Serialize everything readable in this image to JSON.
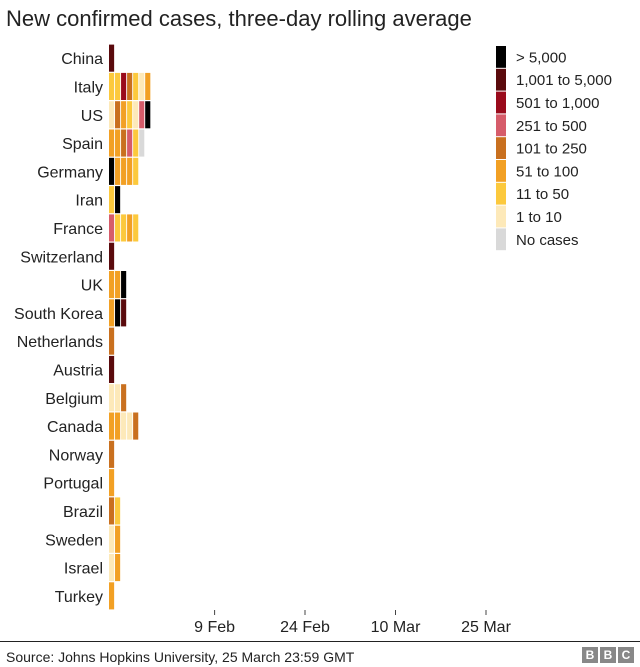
{
  "chart_data": {
    "type": "heatmap",
    "title": "New confirmed cases, three-day rolling average",
    "source": "Source: Johns Hopkins University, 25 March 23:59 GMT",
    "logo": [
      "B",
      "B",
      "C"
    ],
    "start_date": "2020-01-23",
    "end_date": "2020-03-25",
    "x_ticks": [
      {
        "label": "9 Feb",
        "date": "2020-02-09"
      },
      {
        "label": "24 Feb",
        "date": "2020-02-24"
      },
      {
        "label": "10 Mar",
        "date": "2020-03-10"
      },
      {
        "label": "25 Mar",
        "date": "2020-03-25"
      }
    ],
    "categories": [
      {
        "label": "No cases",
        "color": "#d9d9d9"
      },
      {
        "label": "1 to 10",
        "color": "#fde9b9"
      },
      {
        "label": "11 to 50",
        "color": "#fcc93d"
      },
      {
        "label": "51 to 100",
        "color": "#f2a024"
      },
      {
        "label": "101 to 250",
        "color": "#c9701f"
      },
      {
        "label": "251 to 500",
        "color": "#d65c6a"
      },
      {
        "label": "501 to 1,000",
        "color": "#9a0b1c"
      },
      {
        "label": "1,001 to 5,000",
        "color": "#5a0a0d"
      },
      {
        "label": "> 5,000",
        "color": "#000000"
      }
    ],
    "legend_order": [
      8,
      7,
      6,
      5,
      4,
      3,
      2,
      1,
      0
    ],
    "rows": [
      {
        "country": "China",
        "runs": [
          [
            7,
            1
          ],
          [
            46,
            0
          ]
        ]
      },
      {
        "country": "Italy",
        "runs": [
          [
            8,
            0
          ],
          [
            2,
            1
          ],
          [
            5,
            0
          ],
          [
            2,
            1
          ],
          [
            2,
            0
          ],
          [
            6,
            1
          ],
          [
            7,
            0
          ],
          [
            4,
            1
          ],
          [
            6,
            0
          ],
          [
            2,
            1
          ],
          [
            4,
            0
          ],
          [
            1,
            1
          ],
          [
            1,
            0
          ],
          [
            3,
            1
          ],
          [
            8,
            0
          ]
        ]
      },
      {
        "country": "US",
        "runs": [
          [
            1,
            1
          ],
          [
            4,
            0
          ],
          [
            4,
            1
          ],
          [
            9,
            0
          ],
          [
            3,
            1
          ],
          [
            3,
            0
          ],
          [
            2,
            1
          ],
          [
            2,
            0
          ],
          [
            1,
            1
          ],
          [
            4,
            0
          ],
          [
            5,
            1
          ],
          [
            3,
            0
          ],
          [
            12,
            1
          ]
        ]
      },
      {
        "country": "Spain",
        "runs": [
          [
            2,
            0
          ],
          [
            3,
            1
          ],
          [
            5,
            0
          ],
          [
            3,
            1
          ],
          [
            7,
            0
          ],
          [
            4,
            1
          ],
          [
            14,
            0
          ],
          [
            5,
            1
          ],
          [
            3,
            0
          ],
          [
            2,
            1
          ],
          [
            5,
            0
          ],
          [
            0,
            1
          ]
        ]
      },
      {
        "country": "Germany",
        "runs": [
          [
            1,
            0
          ],
          [
            8,
            1
          ],
          [
            4,
            0
          ],
          [
            3,
            1
          ],
          [
            2,
            0
          ],
          [
            3,
            1
          ],
          [
            3,
            0
          ],
          [
            3,
            1
          ],
          [
            3,
            0
          ],
          [
            2,
            1
          ],
          [
            21,
            0
          ]
        ]
      },
      {
        "country": "Iran",
        "runs": [
          [
            24,
            0
          ],
          [
            2,
            1
          ],
          [
            4,
            0
          ],
          [
            23,
            1
          ]
        ]
      },
      {
        "country": "France",
        "runs": [
          [
            2,
            0
          ],
          [
            5,
            1
          ],
          [
            5,
            0
          ],
          [
            2,
            1
          ],
          [
            1,
            0
          ],
          [
            2,
            1
          ],
          [
            3,
            0
          ],
          [
            3,
            1
          ],
          [
            9,
            0
          ],
          [
            2,
            1
          ],
          [
            19,
            0
          ]
        ]
      },
      {
        "country": "Switzerland",
        "runs": [
          [
            30,
            0
          ],
          [
            7,
            1
          ],
          [
            16,
            0
          ]
        ]
      },
      {
        "country": "UK",
        "runs": [
          [
            7,
            0
          ],
          [
            3,
            1
          ],
          [
            13,
            0
          ],
          [
            3,
            1
          ],
          [
            4,
            0
          ],
          [
            9,
            1
          ],
          [
            14,
            0
          ]
        ]
      },
      {
        "country": "South Korea",
        "runs": [
          [
            3,
            1
          ],
          [
            1,
            0
          ],
          [
            11,
            1
          ],
          [
            1,
            0
          ],
          [
            7,
            1
          ],
          [
            30,
            0
          ]
        ]
      },
      {
        "country": "Netherlands",
        "runs": [
          [
            36,
            0
          ],
          [
            4,
            1
          ],
          [
            13,
            0
          ]
        ]
      },
      {
        "country": "Austria",
        "runs": [
          [
            33,
            0
          ],
          [
            7,
            1
          ],
          [
            13,
            0
          ]
        ]
      },
      {
        "country": "Belgium",
        "runs": [
          [
            5,
            0
          ],
          [
            1,
            1
          ],
          [
            4,
            0
          ],
          [
            1,
            1
          ],
          [
            26,
            0
          ],
          [
            4,
            1
          ],
          [
            12,
            0
          ]
        ]
      },
      {
        "country": "Canada",
        "runs": [
          [
            3,
            1
          ],
          [
            3,
            0
          ],
          [
            3,
            1
          ],
          [
            4,
            0
          ],
          [
            1,
            1
          ],
          [
            2,
            0
          ],
          [
            1,
            1
          ],
          [
            13,
            0
          ],
          [
            4,
            1
          ],
          [
            19,
            0
          ]
        ]
      },
      {
        "country": "Norway",
        "runs": [
          [
            35,
            0
          ],
          [
            4,
            1
          ],
          [
            14,
            0
          ]
        ]
      },
      {
        "country": "Portugal",
        "runs": [
          [
            40,
            0
          ],
          [
            3,
            1
          ],
          [
            10,
            0
          ]
        ]
      },
      {
        "country": "Brazil",
        "runs": [
          [
            36,
            0
          ],
          [
            4,
            1
          ],
          [
            1,
            0
          ],
          [
            2,
            1
          ],
          [
            10,
            0
          ]
        ]
      },
      {
        "country": "Sweden",
        "runs": [
          [
            3,
            0
          ],
          [
            1,
            1
          ],
          [
            31,
            0
          ],
          [
            3,
            1
          ],
          [
            15,
            0
          ]
        ]
      },
      {
        "country": "Israel",
        "runs": [
          [
            29,
            0
          ],
          [
            1,
            1
          ],
          [
            5,
            0
          ],
          [
            3,
            1
          ],
          [
            15,
            0
          ]
        ]
      },
      {
        "country": "Turkey",
        "runs": [
          [
            41,
            0
          ],
          [
            3,
            1
          ],
          [
            9,
            0
          ]
        ]
      }
    ]
  }
}
